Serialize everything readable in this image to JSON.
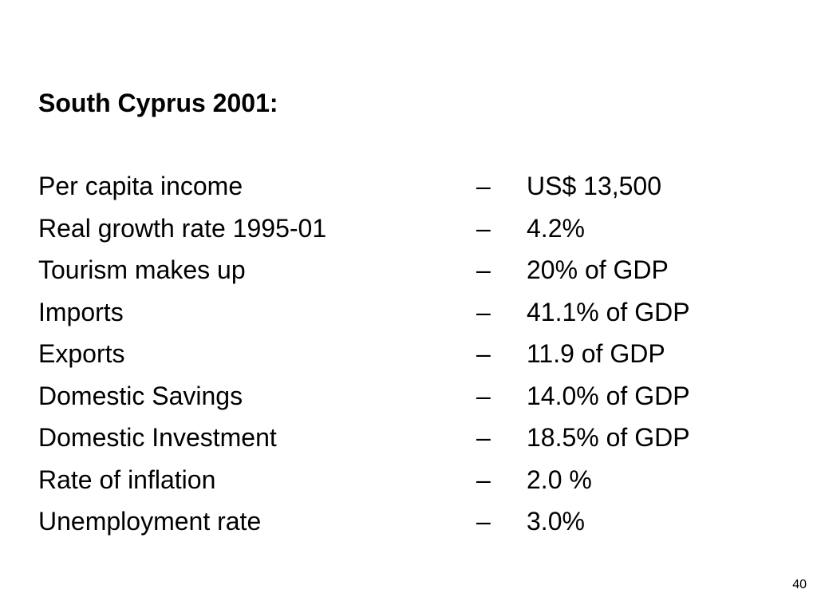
{
  "slide": {
    "title": "South Cyprus 2001:",
    "page_number": "40",
    "rows": [
      {
        "label": "Per capita income",
        "dash": "–",
        "value": "US$ 13,500"
      },
      {
        "label": "Real growth rate 1995-01",
        "dash": "–",
        "value": "4.2%"
      },
      {
        "label": "Tourism makes up",
        "dash": "–",
        "value": "20% of GDP"
      },
      {
        "label": "Imports",
        "dash": "–",
        "value": "41.1% of GDP"
      },
      {
        "label": "Exports",
        "dash": "–",
        "value": "11.9 of GDP"
      },
      {
        "label": "Domestic Savings",
        "dash": "–",
        "value": "14.0% of GDP"
      },
      {
        "label": "Domestic Investment",
        "dash": "–",
        "value": "18.5% of GDP"
      },
      {
        "label": "Rate of inflation",
        "dash": "–",
        "value": "2.0 %"
      },
      {
        "label": "Unemployment rate",
        "dash": "–",
        "value": "3.0%"
      }
    ]
  }
}
